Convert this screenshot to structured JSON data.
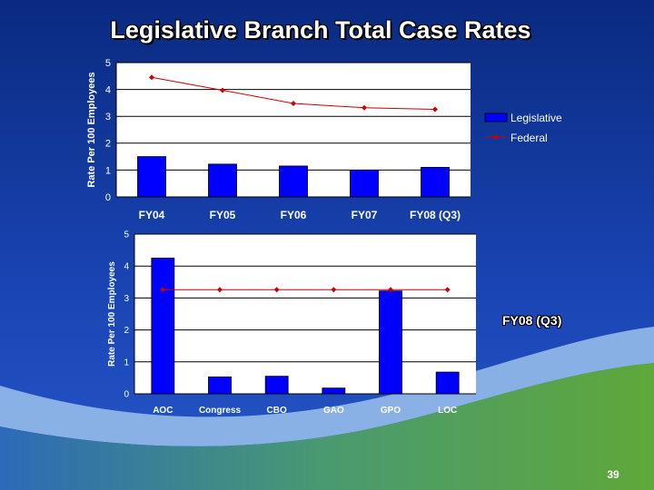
{
  "slide": {
    "title": "Legislative Branch Total Case Rates",
    "side_label": "FY08 (Q3)",
    "page_number": "39",
    "colors": {
      "bar": "#0000ff",
      "line": "#cc0000",
      "bg_top": "#0b2f86",
      "bg_mid": "#1b46b8",
      "swoosh": "#8fb8e8",
      "green": "#59a33a"
    }
  },
  "chart_data": [
    {
      "type": "bar",
      "title": "",
      "xlabel": "",
      "ylabel": "Rate Per 100 Employees",
      "ylim": [
        0,
        5
      ],
      "yticks": [
        "0",
        "1",
        "2",
        "3",
        "4",
        "5"
      ],
      "categories": [
        "FY04",
        "FY05",
        "FY06",
        "FY07",
        "FY08 (Q3)"
      ],
      "grid": true,
      "legend_position": "right",
      "series": [
        {
          "name": "Legislative",
          "kind": "bar",
          "values": [
            1.5,
            1.22,
            1.15,
            1.0,
            1.1
          ]
        },
        {
          "name": "Federal",
          "kind": "line",
          "values": [
            4.45,
            3.97,
            3.48,
            3.32,
            3.26
          ]
        }
      ]
    },
    {
      "type": "bar",
      "title": "",
      "xlabel": "",
      "ylabel": "Rate Per 100 Employees",
      "ylim": [
        0,
        5
      ],
      "yticks": [
        "0",
        "1",
        "2",
        "3",
        "4",
        "5"
      ],
      "categories": [
        "AOC",
        "Congress",
        "CBO",
        "GAO",
        "GPO",
        "LOC"
      ],
      "grid": true,
      "series": [
        {
          "name": "Legislative",
          "kind": "bar",
          "values": [
            4.25,
            0.53,
            0.55,
            0.18,
            3.22,
            0.68
          ]
        },
        {
          "name": "Federal",
          "kind": "line",
          "values": [
            3.26,
            3.26,
            3.26,
            3.26,
            3.26,
            3.26
          ]
        }
      ]
    }
  ]
}
